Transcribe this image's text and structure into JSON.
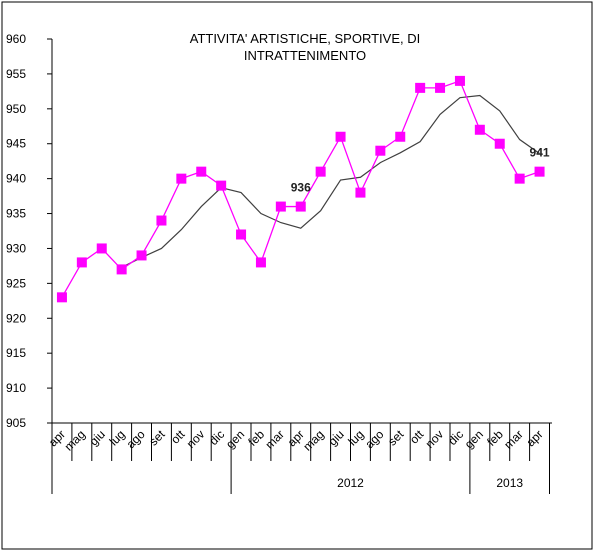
{
  "chart_data": {
    "type": "line",
    "title_lines": [
      "ATTIVITA' ARTISTICHE, SPORTIVE, DI",
      "INTRATTENIMENTO"
    ],
    "ylim": [
      905,
      960
    ],
    "yticks": [
      905,
      910,
      915,
      920,
      925,
      930,
      935,
      940,
      945,
      950,
      955,
      960
    ],
    "months": [
      "apr",
      "mag",
      "giu",
      "lug",
      "ago",
      "set",
      "ott",
      "nov",
      "dic",
      "gen",
      "feb",
      "mar",
      "apr",
      "mag",
      "giu",
      "lug",
      "ago",
      "set",
      "ott",
      "nov",
      "dic",
      "gen",
      "feb",
      "mar",
      "apr"
    ],
    "year_groups": [
      {
        "label": "",
        "start": 0,
        "end": 8
      },
      {
        "label": "2012",
        "start": 9,
        "end": 20
      },
      {
        "label": "2013",
        "start": 21,
        "end": 24
      }
    ],
    "series": [
      {
        "values": [
          923,
          928,
          930,
          927,
          929,
          934,
          940,
          941,
          939,
          932,
          928,
          936,
          936,
          941,
          946,
          938,
          944,
          946,
          953,
          953,
          954,
          947,
          945,
          940,
          941
        ],
        "color": "#ff00ff",
        "marker": "square"
      },
      {
        "values": [
          null,
          null,
          null,
          927.3,
          928.7,
          930.0,
          932.7,
          936.0,
          938.7,
          938.0,
          935.0,
          933.7,
          932.9,
          935.4,
          939.8,
          940.2,
          942.3,
          943.7,
          945.3,
          949.2,
          951.6,
          951.9,
          949.7,
          945.6,
          943.6
        ],
        "color": "#404040",
        "marker": "none"
      }
    ],
    "annotations": [
      {
        "text": "936",
        "index": 12
      },
      {
        "text": "941",
        "index": 24
      }
    ]
  }
}
